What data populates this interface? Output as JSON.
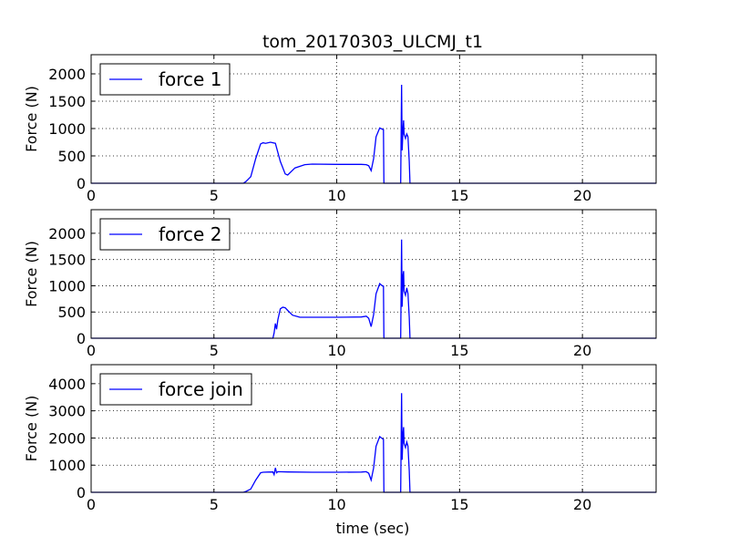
{
  "chart_data": {
    "type": "line",
    "title": "tom_20170303_ULCMJ_t1",
    "xlabel": "time (sec)",
    "grid": true,
    "line_color": "#0000ff",
    "xlim": [
      0,
      23
    ],
    "xticks": [
      0,
      5,
      10,
      15,
      20
    ],
    "subplots": [
      {
        "ylabel": "Force (N)",
        "ylim": [
          0,
          2350
        ],
        "yticks": [
          0,
          500,
          1000,
          1500,
          2000
        ],
        "legend_position": "top-left",
        "series": [
          {
            "name": "force 1",
            "points": [
              [
                0,
                0
              ],
              [
                6.2,
                0
              ],
              [
                6.3,
                30
              ],
              [
                6.5,
                120
              ],
              [
                6.7,
                450
              ],
              [
                6.9,
                720
              ],
              [
                7.0,
                740
              ],
              [
                7.1,
                730
              ],
              [
                7.3,
                750
              ],
              [
                7.5,
                730
              ],
              [
                7.7,
                400
              ],
              [
                7.9,
                170
              ],
              [
                8.0,
                150
              ],
              [
                8.3,
                280
              ],
              [
                8.7,
                340
              ],
              [
                9.0,
                350
              ],
              [
                10.0,
                345
              ],
              [
                11.0,
                345
              ],
              [
                11.2,
                340
              ],
              [
                11.3,
                320
              ],
              [
                11.4,
                230
              ],
              [
                11.5,
                450
              ],
              [
                11.6,
                850
              ],
              [
                11.75,
                1010
              ],
              [
                11.85,
                990
              ],
              [
                11.9,
                980
              ],
              [
                11.92,
                0
              ],
              [
                12.6,
                0
              ],
              [
                12.62,
                900
              ],
              [
                12.64,
                1800
              ],
              [
                12.66,
                600
              ],
              [
                12.7,
                1000
              ],
              [
                12.72,
                1150
              ],
              [
                12.74,
                900
              ],
              [
                12.8,
                820
              ],
              [
                12.85,
                900
              ],
              [
                12.9,
                850
              ],
              [
                12.95,
                400
              ],
              [
                12.98,
                0
              ],
              [
                23,
                0
              ]
            ]
          }
        ]
      },
      {
        "ylabel": "Force (N)",
        "ylim": [
          0,
          2450
        ],
        "yticks": [
          0,
          500,
          1000,
          1500,
          2000
        ],
        "legend_position": "top-left",
        "series": [
          {
            "name": "force 2",
            "points": [
              [
                0,
                0
              ],
              [
                7.4,
                0
              ],
              [
                7.45,
                100
              ],
              [
                7.5,
                280
              ],
              [
                7.55,
                170
              ],
              [
                7.6,
                350
              ],
              [
                7.7,
                560
              ],
              [
                7.8,
                590
              ],
              [
                7.9,
                580
              ],
              [
                8.0,
                530
              ],
              [
                8.2,
                440
              ],
              [
                8.5,
                400
              ],
              [
                9.0,
                400
              ],
              [
                10.0,
                400
              ],
              [
                11.0,
                405
              ],
              [
                11.2,
                420
              ],
              [
                11.3,
                380
              ],
              [
                11.4,
                220
              ],
              [
                11.5,
                450
              ],
              [
                11.6,
                850
              ],
              [
                11.75,
                1040
              ],
              [
                11.85,
                1000
              ],
              [
                11.9,
                990
              ],
              [
                11.92,
                0
              ],
              [
                12.6,
                0
              ],
              [
                12.62,
                900
              ],
              [
                12.64,
                1880
              ],
              [
                12.66,
                600
              ],
              [
                12.7,
                1200
              ],
              [
                12.72,
                1280
              ],
              [
                12.74,
                900
              ],
              [
                12.8,
                820
              ],
              [
                12.85,
                960
              ],
              [
                12.9,
                850
              ],
              [
                12.95,
                400
              ],
              [
                12.98,
                0
              ],
              [
                23,
                0
              ]
            ]
          }
        ]
      },
      {
        "ylabel": "Force (N)",
        "ylim": [
          0,
          4700
        ],
        "yticks": [
          0,
          1000,
          2000,
          3000,
          4000
        ],
        "legend_position": "top-left",
        "series": [
          {
            "name": "force join",
            "points": [
              [
                0,
                0
              ],
              [
                6.2,
                0
              ],
              [
                6.3,
                30
              ],
              [
                6.5,
                120
              ],
              [
                6.7,
                450
              ],
              [
                6.9,
                720
              ],
              [
                7.0,
                740
              ],
              [
                7.2,
                745
              ],
              [
                7.4,
                750
              ],
              [
                7.45,
                650
              ],
              [
                7.5,
                900
              ],
              [
                7.55,
                720
              ],
              [
                7.6,
                760
              ],
              [
                8.0,
                750
              ],
              [
                9.0,
                740
              ],
              [
                10.0,
                740
              ],
              [
                11.0,
                745
              ],
              [
                11.2,
                760
              ],
              [
                11.3,
                700
              ],
              [
                11.4,
                450
              ],
              [
                11.5,
                900
              ],
              [
                11.6,
                1700
              ],
              [
                11.75,
                2050
              ],
              [
                11.85,
                1980
              ],
              [
                11.9,
                1950
              ],
              [
                11.92,
                0
              ],
              [
                12.6,
                0
              ],
              [
                12.62,
                1800
              ],
              [
                12.64,
                3650
              ],
              [
                12.66,
                1200
              ],
              [
                12.7,
                2200
              ],
              [
                12.72,
                2400
              ],
              [
                12.74,
                1800
              ],
              [
                12.8,
                1650
              ],
              [
                12.85,
                1850
              ],
              [
                12.9,
                1700
              ],
              [
                12.95,
                800
              ],
              [
                12.98,
                0
              ],
              [
                23,
                0
              ]
            ]
          }
        ]
      }
    ]
  }
}
